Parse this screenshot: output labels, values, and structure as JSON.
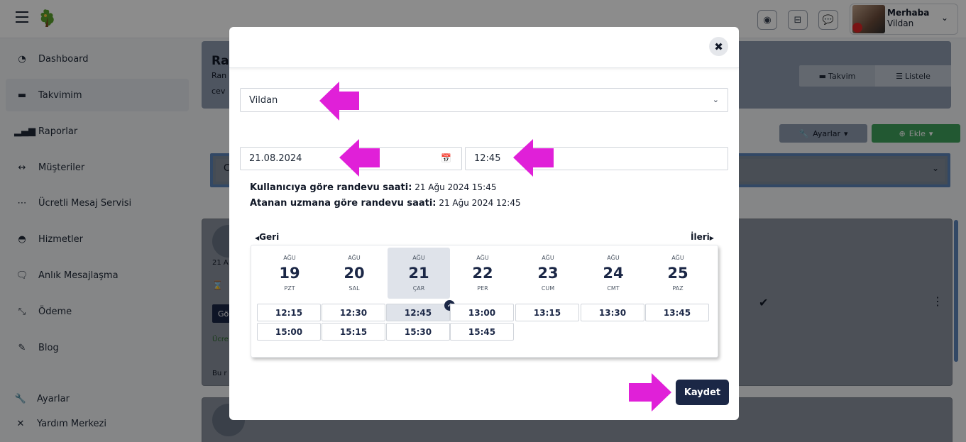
{
  "topbar": {
    "user_greeting": "Merhaba",
    "user_name": "Vildan"
  },
  "sidebar": {
    "items": [
      {
        "label": "Dashboard",
        "icon": "gauge-icon",
        "glyph": "◔"
      },
      {
        "label": "Takvimim",
        "icon": "calendar-icon",
        "glyph": "▬"
      },
      {
        "label": "Raporlar",
        "icon": "bar-chart-icon",
        "glyph": "▂▄▆"
      },
      {
        "label": "Müşteriler",
        "icon": "users-icon",
        "glyph": "↔"
      },
      {
        "label": "Ücretli Mesaj Servisi",
        "icon": "message-dots-icon",
        "glyph": "⋯"
      },
      {
        "label": "Hizmetler",
        "icon": "services-icon",
        "glyph": "◓"
      },
      {
        "label": "Anlık Mesajlaşma",
        "icon": "chat-icon",
        "glyph": "🗨"
      },
      {
        "label": "Ödeme",
        "icon": "payment-icon",
        "glyph": "⤡"
      },
      {
        "label": "Blog",
        "icon": "pen-icon",
        "glyph": "✎"
      },
      {
        "label": "Ayarlar",
        "icon": "wrench-icon",
        "glyph": "🔧"
      },
      {
        "label": "Yardım Merkezi",
        "icon": "help-icon",
        "glyph": "✕"
      }
    ]
  },
  "background": {
    "title": "Ra",
    "sub1": "Ran",
    "sub2": "cev",
    "view_calendar": "Takvim",
    "view_list": "Listele",
    "settings_label": "Ayarlar",
    "add_label": "Ekle",
    "filter_letter": "C",
    "card_date": "21 A",
    "card_btn": "Gö",
    "card_fee": "Ücre",
    "card_note": "Bu r"
  },
  "modal": {
    "expert_select": "Vildan",
    "date_value": "21.08.2024",
    "time_value": "12:45",
    "user_time_label": "Kullanıcıya göre randevu saati:",
    "user_time_value": "21 Ağu 2024 15:45",
    "expert_time_label": "Atanan uzmana göre randevu saati:",
    "expert_time_value": "21 Ağu 2024 12:45",
    "prev_label": "Geri",
    "next_label": "İleri",
    "days": [
      {
        "month": "AĞU",
        "day": "19",
        "dow": "PZT"
      },
      {
        "month": "AĞU",
        "day": "20",
        "dow": "SAL"
      },
      {
        "month": "AĞU",
        "day": "21",
        "dow": "ÇAR"
      },
      {
        "month": "AĞU",
        "day": "22",
        "dow": "PER"
      },
      {
        "month": "AĞU",
        "day": "23",
        "dow": "CUM"
      },
      {
        "month": "AĞU",
        "day": "24",
        "dow": "CMT"
      },
      {
        "month": "AĞU",
        "day": "25",
        "dow": "PAZ"
      }
    ],
    "slots": [
      "12:15",
      "12:30",
      "12:45",
      "13:00",
      "13:15",
      "13:30",
      "13:45",
      "15:00",
      "15:15",
      "15:30",
      "15:45"
    ],
    "selected_slot": "12:45",
    "save_label": "Kaydet"
  },
  "colors": {
    "annotation_arrow": "#e020d8",
    "primary": "#1b2746",
    "success": "#3fa15b"
  }
}
